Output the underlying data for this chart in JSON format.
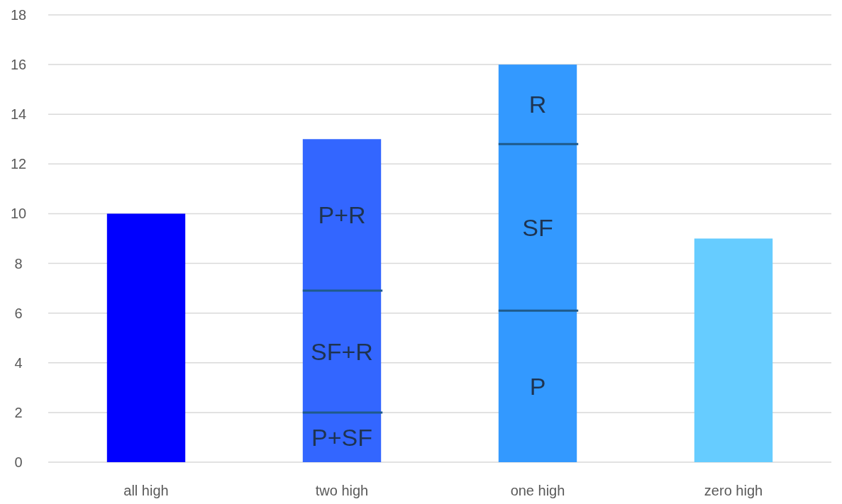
{
  "chart_data": {
    "type": "bar",
    "stacked": true,
    "categories": [
      "all high",
      "two high",
      "one high",
      "zero high"
    ],
    "series": [
      {
        "colors": [
          "#0000ff",
          "#3366ff",
          "#3399ff",
          "#66ccff"
        ],
        "values": [
          10,
          2,
          6.1,
          9
        ],
        "value_labels": [
          null,
          "P+SF",
          "P",
          null
        ]
      },
      {
        "colors": [
          null,
          "#3366ff",
          "#3399ff",
          null
        ],
        "values": [
          null,
          4.9,
          6.7,
          null
        ],
        "value_labels": [
          null,
          "SF+R",
          "SF",
          null
        ]
      },
      {
        "colors": [
          null,
          "#3366ff",
          "#3399ff",
          null
        ],
        "values": [
          null,
          6.1,
          3.2,
          null
        ],
        "value_labels": [
          null,
          "P+R",
          "R",
          null
        ]
      }
    ],
    "ylim": [
      0,
      18
    ],
    "yticks": [
      0,
      2,
      4,
      6,
      8,
      10,
      12,
      14,
      16,
      18
    ],
    "grid": "y"
  }
}
